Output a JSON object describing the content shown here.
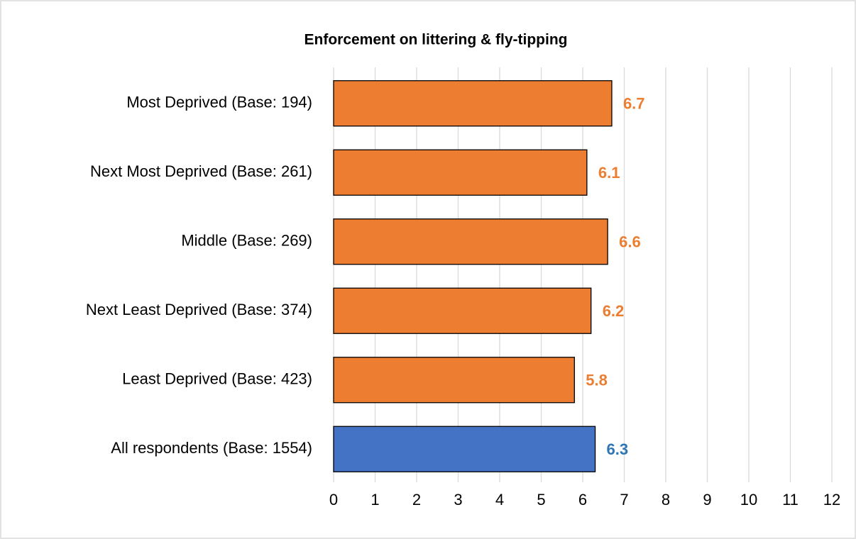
{
  "chart_data": {
    "type": "barh",
    "title": "Enforcement on littering & fly-tipping",
    "categories": [
      "Most Deprived (Base: 194)",
      "Next Most Deprived (Base: 261)",
      "Middle (Base: 269)",
      "Next Least Deprived (Base: 374)",
      "Least Deprived (Base: 423)",
      "All respondents (Base: 1554)"
    ],
    "values": [
      6.7,
      6.1,
      6.6,
      6.2,
      5.8,
      6.3
    ],
    "colors": [
      "#ED7D31",
      "#ED7D31",
      "#ED7D31",
      "#ED7D31",
      "#ED7D31",
      "#4472C4"
    ],
    "label_colors": [
      "#ED7D31",
      "#ED7D31",
      "#ED7D31",
      "#ED7D31",
      "#ED7D31",
      "#2E75B6"
    ],
    "xlim": [
      0,
      12
    ],
    "xticks": [
      0,
      1,
      2,
      3,
      4,
      5,
      6,
      7,
      8,
      9,
      10,
      11,
      12
    ],
    "grid": true
  }
}
